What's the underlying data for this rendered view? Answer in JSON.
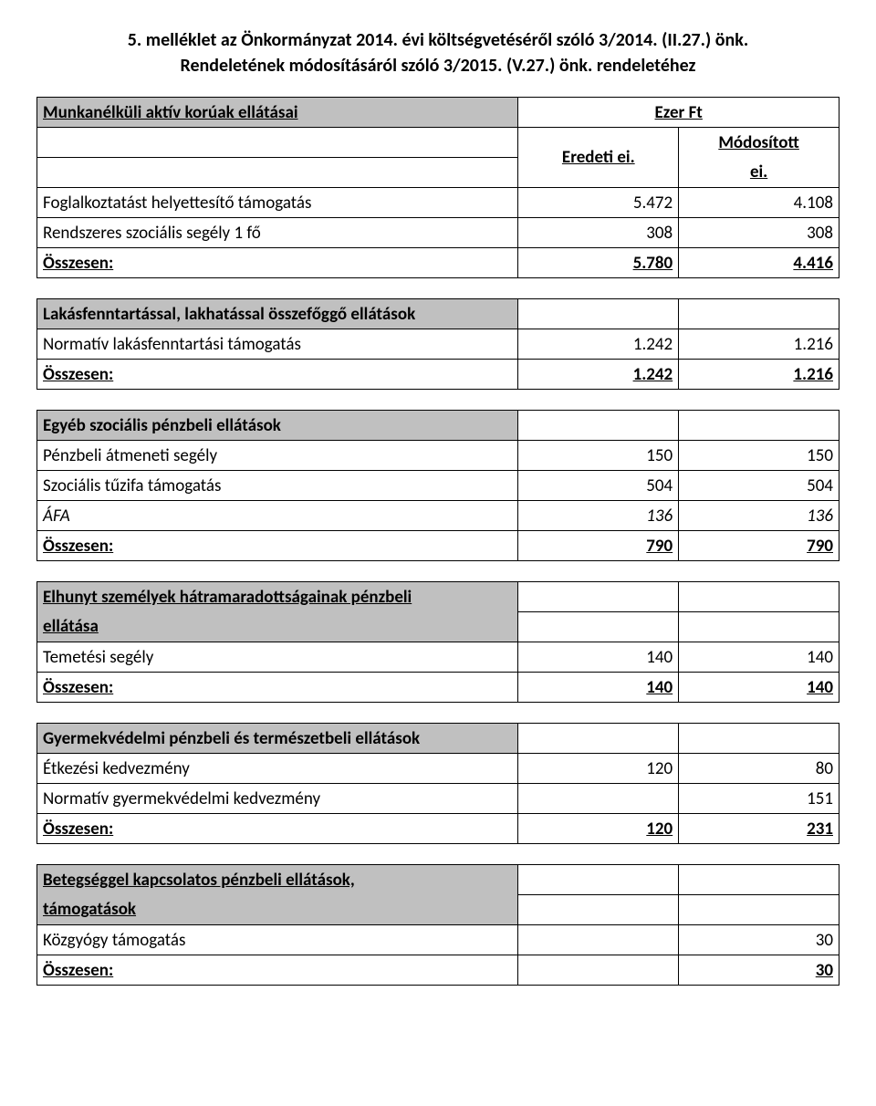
{
  "header": {
    "line1": "5. melléklet az Önkormányzat 2014. évi költségvetéséről szóló 3/2014. (II.27.) önk.",
    "line2": "Rendeletének módosításáról szóló 3/2015. (V.27.) önk. rendeletéhez"
  },
  "col_headers": {
    "unit": "Ezer Ft",
    "orig": "Eredeti ei.",
    "mod1": "Módosított",
    "mod2": "ei."
  },
  "s1": {
    "title": "Munkanélküli aktív korúak ellátásai",
    "r1": {
      "label": "Foglalkoztatást helyettesítő támogatás",
      "v1": "5.472",
      "v2": "4.108"
    },
    "r2": {
      "label": "Rendszeres szociális segély 1 fő",
      "v1": "308",
      "v2": "308"
    },
    "tot": {
      "label": "Összesen:",
      "v1": "5.780",
      "v2": "4.416"
    }
  },
  "s2": {
    "title": "Lakásfenntartással, lakhatással összefőggő ellátások",
    "r1": {
      "label": "Normatív lakásfenntartási támogatás",
      "v1": "1.242",
      "v2": "1.216"
    },
    "tot": {
      "label": "Összesen:",
      "v1": "1.242",
      "v2": "1.216"
    }
  },
  "s3": {
    "title": "Egyéb szociális pénzbeli ellátások",
    "r1": {
      "label": "Pénzbeli átmeneti segély",
      "v1": "150",
      "v2": "150"
    },
    "r2": {
      "label": "Szociális tűzifa támogatás",
      "v1": "504",
      "v2": "504"
    },
    "r3": {
      "label": "ÁFA",
      "v1": "136",
      "v2": "136"
    },
    "tot": {
      "label": "Összesen:",
      "v1": "790",
      "v2": "790"
    }
  },
  "s4": {
    "title1": "Elhunyt személyek hátramaradottságainak pénzbeli",
    "title2": "ellátása",
    "r1": {
      "label": "Temetési segély",
      "v1": "140",
      "v2": "140"
    },
    "tot": {
      "label": "Összesen:",
      "v1": "140",
      "v2": "140"
    }
  },
  "s5": {
    "title": "Gyermekvédelmi pénzbeli és természetbeli ellátások",
    "r1": {
      "label": "Étkezési kedvezmény",
      "v1": "120",
      "v2": "80"
    },
    "r2": {
      "label": "Normatív gyermekvédelmi kedvezmény",
      "v1": "",
      "v2": "151"
    },
    "tot": {
      "label": "Összesen:",
      "v1": "120",
      "v2": "231"
    }
  },
  "s6": {
    "title1": "Betegséggel kapcsolatos pénzbeli ellátások,",
    "title2": "támogatások",
    "r1": {
      "label": "Közgyógy támogatás",
      "v1": "",
      "v2": "30"
    },
    "tot": {
      "label": "Összesen:",
      "v1": "",
      "v2": "30"
    }
  },
  "colors": {
    "header_bg": "#c0c0c0",
    "border": "#000000",
    "text": "#000000",
    "page_bg": "#ffffff"
  },
  "font": {
    "family": "Calibri",
    "size_body": 19,
    "size_header": 20
  }
}
